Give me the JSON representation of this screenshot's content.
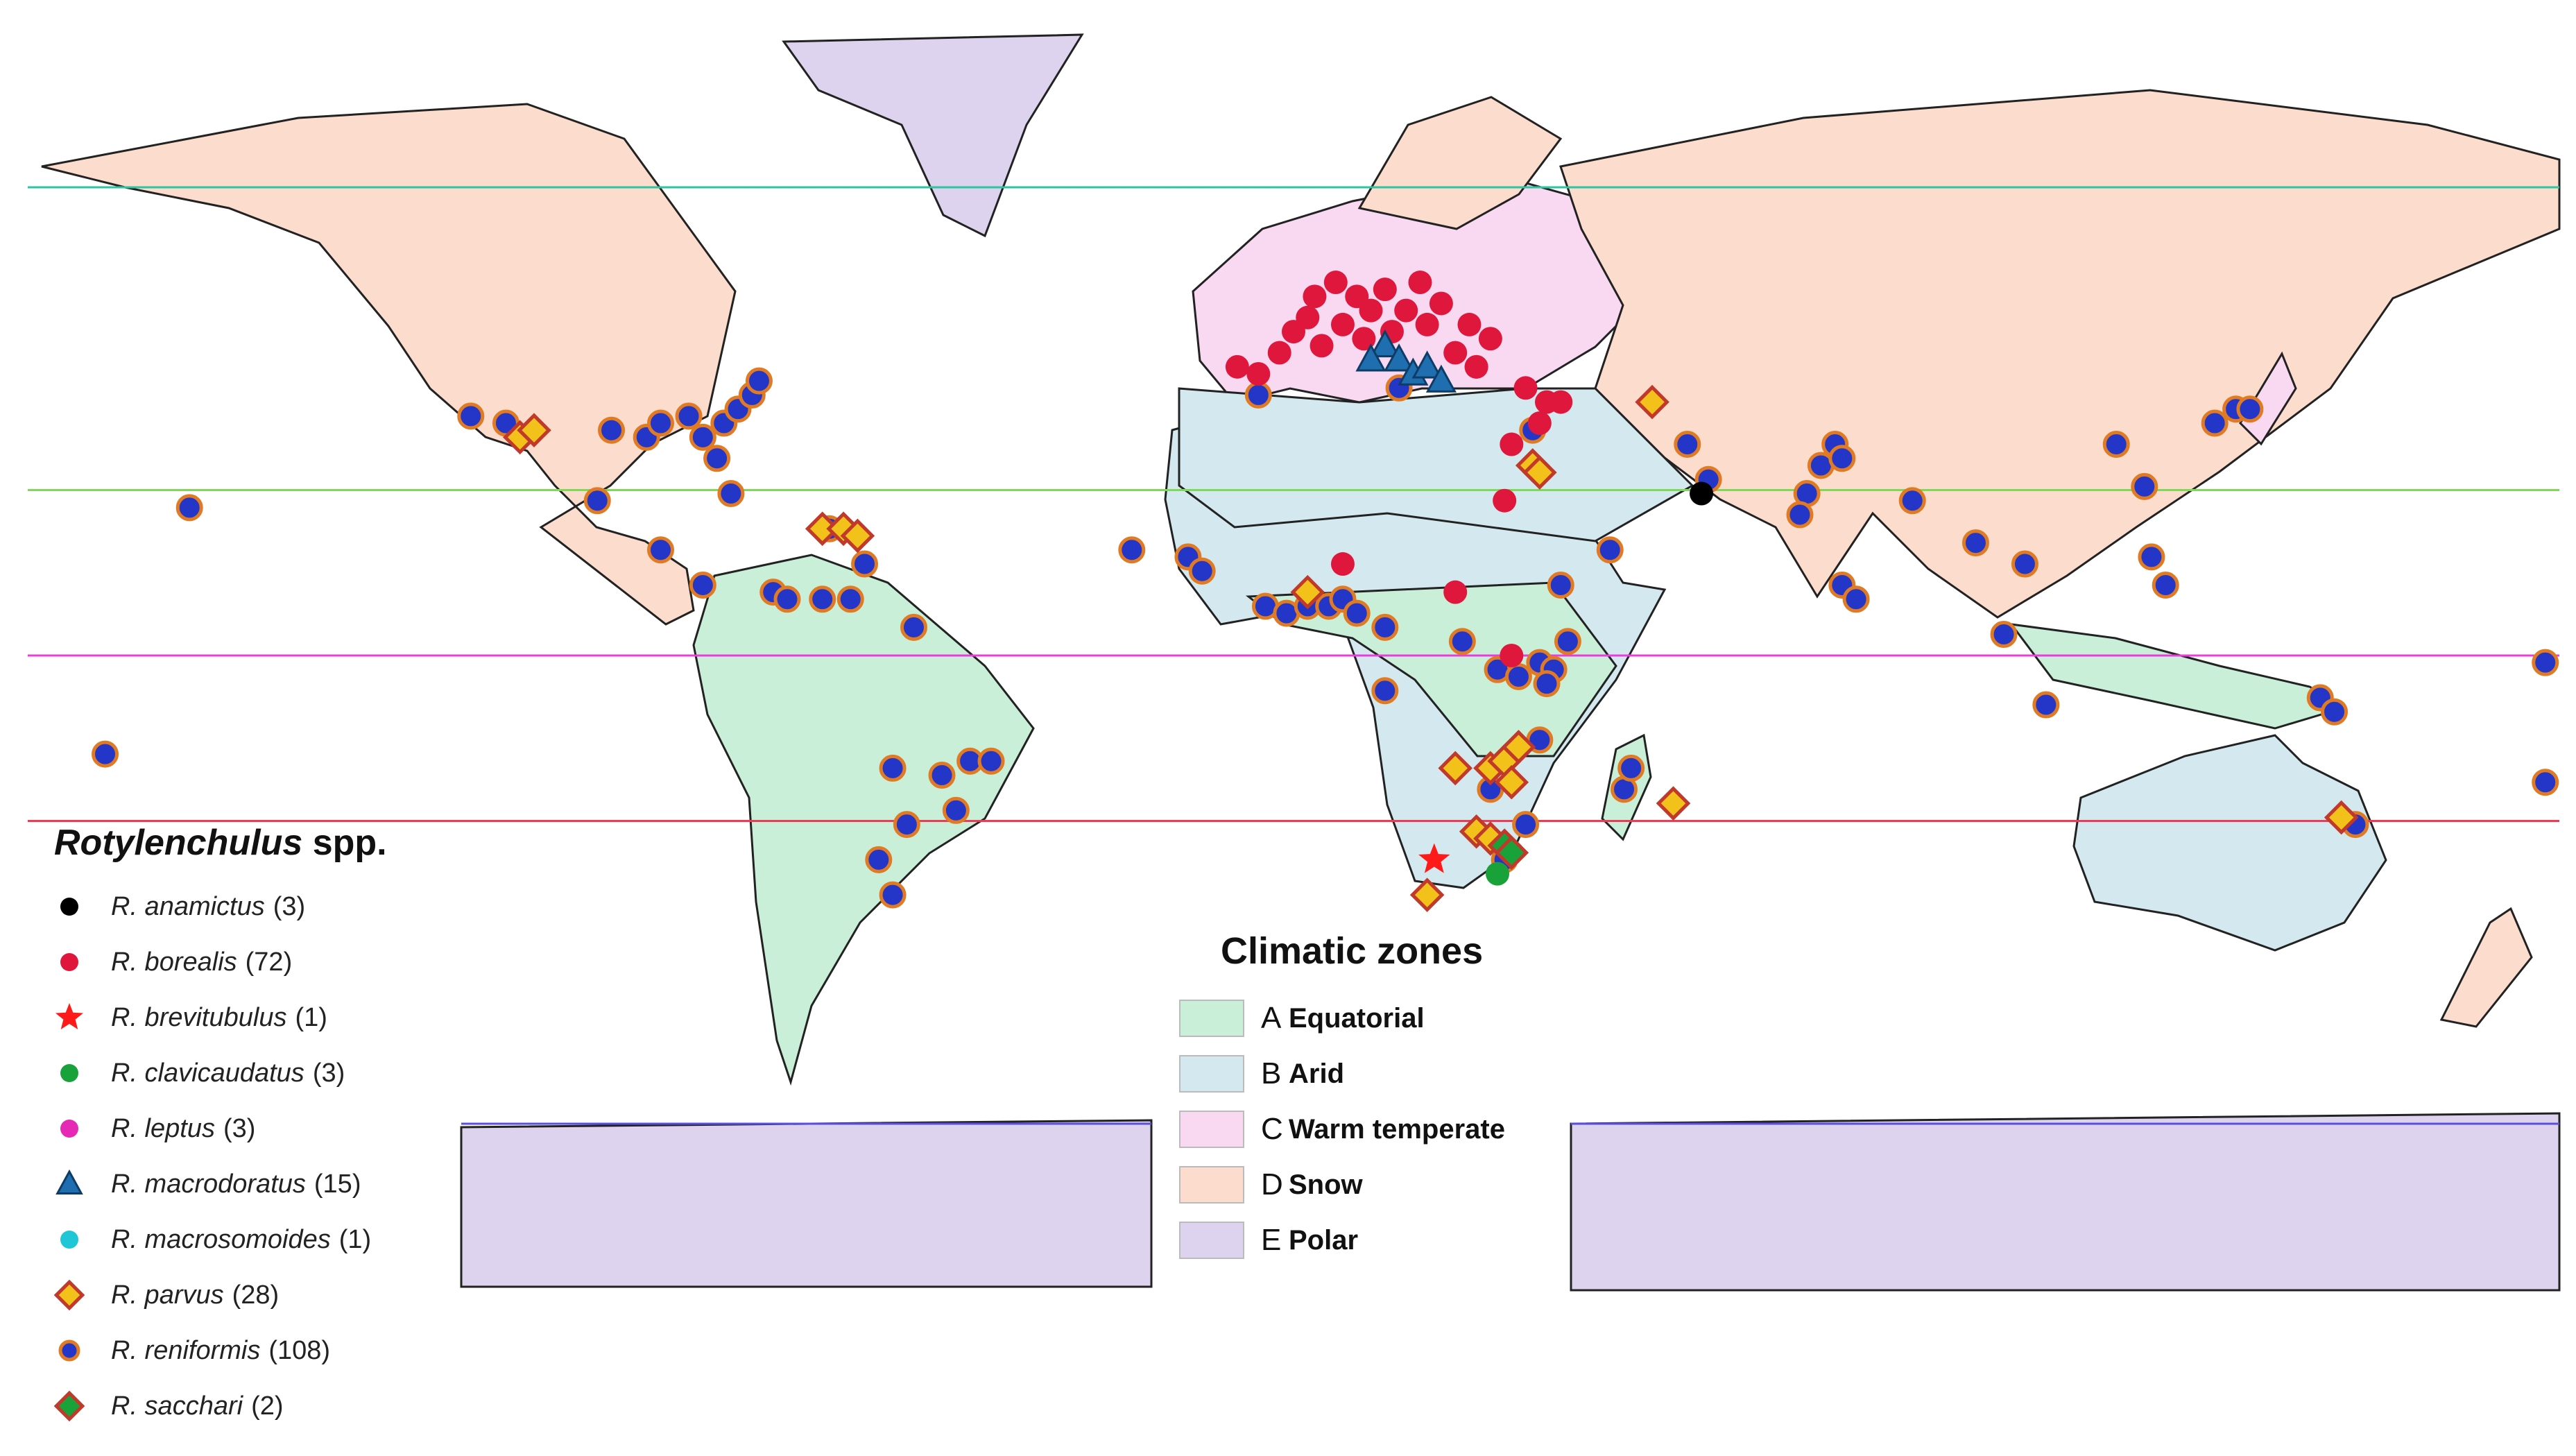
{
  "species_legend": {
    "title_genus": "Rotylenchulus",
    "title_suffix": "spp.",
    "items": [
      {
        "name": "R. anamictus",
        "count": "(3)",
        "symbol": "circle",
        "color": "#000000"
      },
      {
        "name": "R. borealis",
        "count": "(72)",
        "symbol": "circle",
        "color": "#e0173c"
      },
      {
        "name": "R. brevitubulus",
        "count": "(1)",
        "symbol": "star",
        "color": "#ff1a1a"
      },
      {
        "name": "R. clavicaudatus",
        "count": "(3)",
        "symbol": "circle",
        "color": "#1aa23a"
      },
      {
        "name": "R. leptus",
        "count": "(3)",
        "symbol": "circle",
        "color": "#e629b5"
      },
      {
        "name": "R. macrodoratus",
        "count": "(15)",
        "symbol": "triangle",
        "color": "#1f6fb0"
      },
      {
        "name": "R. macrosomoides",
        "count": "(1)",
        "symbol": "circle",
        "color": "#1fc7d6"
      },
      {
        "name": "R. parvus",
        "count": "(28)",
        "symbol": "diamond",
        "color": "#f2c21b"
      },
      {
        "name": "R. reniformis",
        "count": "(108)",
        "symbol": "circle",
        "color": "#2336c8"
      },
      {
        "name": "R. sacchari",
        "count": "(2)",
        "symbol": "diamond",
        "color": "#1aa23a"
      }
    ]
  },
  "zones_legend": {
    "title": "Climatic zones",
    "items": [
      {
        "letter": "A",
        "label": "Equatorial",
        "color": "#c9efd9"
      },
      {
        "letter": "B",
        "label": "Arid",
        "color": "#d4e9ef"
      },
      {
        "letter": "C",
        "label": "Warm temperate",
        "color": "#f9d9f1"
      },
      {
        "letter": "D",
        "label": "Snow",
        "color": "#fbdccd"
      },
      {
        "letter": "E",
        "label": "Polar",
        "color": "#ddd3ee"
      }
    ]
  },
  "latitude_lines": [
    {
      "latitude": 66.5,
      "color": "#2ec4a0"
    },
    {
      "latitude": 23.5,
      "color": "#7ed957"
    },
    {
      "latitude": 0,
      "color": "#ee3be0"
    },
    {
      "latitude": -23.5,
      "color": "#ef3a56"
    },
    {
      "latitude": -66.5,
      "color": "#5a4fd8"
    }
  ],
  "occurrences": [
    {
      "species": "R. reniformis",
      "lon": -117,
      "lat": 34
    },
    {
      "species": "R. reniformis",
      "lon": -112,
      "lat": 33
    },
    {
      "species": "R. reniformis",
      "lon": -97,
      "lat": 32
    },
    {
      "species": "R. reniformis",
      "lon": -92,
      "lat": 31
    },
    {
      "species": "R. reniformis",
      "lon": -90,
      "lat": 33
    },
    {
      "species": "R. reniformis",
      "lon": -86,
      "lat": 34
    },
    {
      "species": "R. reniformis",
      "lon": -84,
      "lat": 31
    },
    {
      "species": "R. reniformis",
      "lon": -81,
      "lat": 33
    },
    {
      "species": "R. reniformis",
      "lon": -79,
      "lat": 35
    },
    {
      "species": "R. reniformis",
      "lon": -77,
      "lat": 37
    },
    {
      "species": "R. reniformis",
      "lon": -76,
      "lat": 39
    },
    {
      "species": "R. reniformis",
      "lon": -82,
      "lat": 28
    },
    {
      "species": "R. reniformis",
      "lon": -99,
      "lat": 22
    },
    {
      "species": "R. reniformis",
      "lon": -157,
      "lat": 21
    },
    {
      "species": "R. reniformis",
      "lon": -80,
      "lat": 23
    },
    {
      "species": "R. reniformis",
      "lon": -90,
      "lat": 15
    },
    {
      "species": "R. reniformis",
      "lon": -84,
      "lat": 10
    },
    {
      "species": "R. reniformis",
      "lon": -66,
      "lat": 18
    },
    {
      "species": "R. reniformis",
      "lon": -61,
      "lat": 13
    },
    {
      "species": "R. reniformis",
      "lon": -74,
      "lat": 9
    },
    {
      "species": "R. reniformis",
      "lon": -72,
      "lat": 8
    },
    {
      "species": "R. reniformis",
      "lon": -67,
      "lat": 8
    },
    {
      "species": "R. reniformis",
      "lon": -63,
      "lat": 8
    },
    {
      "species": "R. reniformis",
      "lon": -54,
      "lat": 4
    },
    {
      "species": "R. reniformis",
      "lon": -169,
      "lat": -14
    },
    {
      "species": "R. reniformis",
      "lon": -57,
      "lat": -16
    },
    {
      "species": "R. reniformis",
      "lon": -50,
      "lat": -17
    },
    {
      "species": "R. reniformis",
      "lon": -46,
      "lat": -15
    },
    {
      "species": "R. reniformis",
      "lon": -43,
      "lat": -15
    },
    {
      "species": "R. reniformis",
      "lon": -48,
      "lat": -22
    },
    {
      "species": "R. reniformis",
      "lon": -55,
      "lat": -24
    },
    {
      "species": "R. reniformis",
      "lon": -59,
      "lat": -29
    },
    {
      "species": "R. reniformis",
      "lon": -57,
      "lat": -34
    },
    {
      "species": "R. reniformis",
      "lon": -5,
      "lat": 37
    },
    {
      "species": "R. reniformis",
      "lon": 15,
      "lat": 38
    },
    {
      "species": "R. reniformis",
      "lon": 34,
      "lat": 32
    },
    {
      "species": "R. reniformis",
      "lon": 56,
      "lat": 30
    },
    {
      "species": "R. reniformis",
      "lon": 59,
      "lat": 25
    },
    {
      "species": "R. reniformis",
      "lon": 45,
      "lat": 15
    },
    {
      "species": "R. reniformis",
      "lon": -23,
      "lat": 15
    },
    {
      "species": "R. reniformis",
      "lon": -15,
      "lat": 14
    },
    {
      "species": "R. reniformis",
      "lon": -13,
      "lat": 12
    },
    {
      "species": "R. reniformis",
      "lon": -4,
      "lat": 7
    },
    {
      "species": "R. reniformis",
      "lon": -1,
      "lat": 6
    },
    {
      "species": "R. reniformis",
      "lon": 2,
      "lat": 7
    },
    {
      "species": "R. reniformis",
      "lon": 5,
      "lat": 7
    },
    {
      "species": "R. reniformis",
      "lon": 7,
      "lat": 8
    },
    {
      "species": "R. reniformis",
      "lon": 9,
      "lat": 6
    },
    {
      "species": "R. reniformis",
      "lon": 13,
      "lat": 4
    },
    {
      "species": "R. reniformis",
      "lon": 24,
      "lat": 2
    },
    {
      "species": "R. reniformis",
      "lon": 13,
      "lat": -5
    },
    {
      "species": "R. reniformis",
      "lon": 29,
      "lat": -2
    },
    {
      "species": "R. reniformis",
      "lon": 32,
      "lat": -3
    },
    {
      "species": "R. reniformis",
      "lon": 35,
      "lat": -1
    },
    {
      "species": "R. reniformis",
      "lon": 37,
      "lat": -2
    },
    {
      "species": "R. reniformis",
      "lon": 36,
      "lat": -4
    },
    {
      "species": "R. reniformis",
      "lon": 39,
      "lat": 2
    },
    {
      "species": "R. reniformis",
      "lon": 38,
      "lat": 10
    },
    {
      "species": "R. reniformis",
      "lon": 35,
      "lat": -12
    },
    {
      "species": "R. reniformis",
      "lon": 33,
      "lat": -24
    },
    {
      "species": "R. reniformis",
      "lon": 47,
      "lat": -19
    },
    {
      "species": "R. reniformis",
      "lon": 48,
      "lat": -16
    },
    {
      "species": "R. reniformis",
      "lon": 28,
      "lat": -19
    },
    {
      "species": "R. reniformis",
      "lon": 30,
      "lat": -29
    },
    {
      "species": "R. reniformis",
      "lon": 73,
      "lat": 23
    },
    {
      "species": "R. reniformis",
      "lon": 75,
      "lat": 27
    },
    {
      "species": "R. reniformis",
      "lon": 77,
      "lat": 30
    },
    {
      "species": "R. reniformis",
      "lon": 78,
      "lat": 28
    },
    {
      "species": "R. reniformis",
      "lon": 72,
      "lat": 20
    },
    {
      "species": "R. reniformis",
      "lon": 88,
      "lat": 22
    },
    {
      "species": "R. reniformis",
      "lon": 78,
      "lat": 10
    },
    {
      "species": "R. reniformis",
      "lon": 80,
      "lat": 8
    },
    {
      "species": "R. reniformis",
      "lon": 97,
      "lat": 16
    },
    {
      "species": "R. reniformis",
      "lon": 104,
      "lat": 13
    },
    {
      "species": "R. reniformis",
      "lon": 101,
      "lat": 3
    },
    {
      "species": "R. reniformis",
      "lon": 117,
      "lat": 30
    },
    {
      "species": "R. reniformis",
      "lon": 121,
      "lat": 24
    },
    {
      "species": "R. reniformis",
      "lon": 122,
      "lat": 14
    },
    {
      "species": "R. reniformis",
      "lon": 124,
      "lat": 10
    },
    {
      "species": "R. reniformis",
      "lon": 107,
      "lat": -7
    },
    {
      "species": "R. reniformis",
      "lon": 131,
      "lat": 33
    },
    {
      "species": "R. reniformis",
      "lon": 134,
      "lat": 35
    },
    {
      "species": "R. reniformis",
      "lon": 136,
      "lat": 35
    },
    {
      "species": "R. reniformis",
      "lon": 146,
      "lat": -6
    },
    {
      "species": "R. reniformis",
      "lon": 148,
      "lat": -8
    },
    {
      "species": "R. reniformis",
      "lon": 178,
      "lat": -1
    },
    {
      "species": "R. reniformis",
      "lon": 178,
      "lat": -18
    },
    {
      "species": "R. reniformis",
      "lon": 151,
      "lat": -24
    },
    {
      "species": "R. borealis",
      "lon": -8,
      "lat": 41
    },
    {
      "species": "R. borealis",
      "lon": -5,
      "lat": 40
    },
    {
      "species": "R. borealis",
      "lon": -2,
      "lat": 43
    },
    {
      "species": "R. borealis",
      "lon": 0,
      "lat": 46
    },
    {
      "species": "R. borealis",
      "lon": 2,
      "lat": 48
    },
    {
      "species": "R. borealis",
      "lon": 3,
      "lat": 51
    },
    {
      "species": "R. borealis",
      "lon": 4,
      "lat": 44
    },
    {
      "species": "R. borealis",
      "lon": 6,
      "lat": 53
    },
    {
      "species": "R. borealis",
      "lon": 7,
      "lat": 47
    },
    {
      "species": "R. borealis",
      "lon": 9,
      "lat": 51
    },
    {
      "species": "R. borealis",
      "lon": 10,
      "lat": 45
    },
    {
      "species": "R. borealis",
      "lon": 11,
      "lat": 49
    },
    {
      "species": "R. borealis",
      "lon": 13,
      "lat": 52
    },
    {
      "species": "R. borealis",
      "lon": 14,
      "lat": 46
    },
    {
      "species": "R. borealis",
      "lon": 16,
      "lat": 49
    },
    {
      "species": "R. borealis",
      "lon": 18,
      "lat": 53
    },
    {
      "species": "R. borealis",
      "lon": 19,
      "lat": 47
    },
    {
      "species": "R. borealis",
      "lon": 21,
      "lat": 50
    },
    {
      "species": "R. borealis",
      "lon": 23,
      "lat": 43
    },
    {
      "species": "R. borealis",
      "lon": 25,
      "lat": 47
    },
    {
      "species": "R. borealis",
      "lon": 26,
      "lat": 41
    },
    {
      "species": "R. borealis",
      "lon": 28,
      "lat": 45
    },
    {
      "species": "R. borealis",
      "lon": 33,
      "lat": 38
    },
    {
      "species": "R. borealis",
      "lon": 36,
      "lat": 36
    },
    {
      "species": "R. borealis",
      "lon": 35,
      "lat": 33
    },
    {
      "species": "R. borealis",
      "lon": 38,
      "lat": 36
    },
    {
      "species": "R. borealis",
      "lon": 31,
      "lat": 30
    },
    {
      "species": "R. borealis",
      "lon": 30,
      "lat": 22
    },
    {
      "species": "R. borealis",
      "lon": 7,
      "lat": 13
    },
    {
      "species": "R. borealis",
      "lon": 23,
      "lat": 9
    },
    {
      "species": "R. borealis",
      "lon": 31,
      "lat": 0
    },
    {
      "species": "R. borealis",
      "lon": 26,
      "lat": 41
    },
    {
      "species": "R. macrodoratus",
      "lon": 13,
      "lat": 44
    },
    {
      "species": "R. macrodoratus",
      "lon": 15,
      "lat": 42
    },
    {
      "species": "R. macrodoratus",
      "lon": 17,
      "lat": 40
    },
    {
      "species": "R. macrodoratus",
      "lon": 19,
      "lat": 41
    },
    {
      "species": "R. macrodoratus",
      "lon": 21,
      "lat": 39
    },
    {
      "species": "R. macrodoratus",
      "lon": 11,
      "lat": 42
    },
    {
      "species": "R. parvus",
      "lon": -110,
      "lat": 31
    },
    {
      "species": "R. parvus",
      "lon": -108,
      "lat": 32
    },
    {
      "species": "R. parvus",
      "lon": -67,
      "lat": 18
    },
    {
      "species": "R. parvus",
      "lon": -64,
      "lat": 18
    },
    {
      "species": "R. parvus",
      "lon": -62,
      "lat": 17
    },
    {
      "species": "R. parvus",
      "lon": 2,
      "lat": 9
    },
    {
      "species": "R. parvus",
      "lon": 34,
      "lat": 27
    },
    {
      "species": "R. parvus",
      "lon": 35,
      "lat": 26
    },
    {
      "species": "R. parvus",
      "lon": 51,
      "lat": 36
    },
    {
      "species": "R. parvus",
      "lon": 54,
      "lat": -21
    },
    {
      "species": "R. parvus",
      "lon": 23,
      "lat": -16
    },
    {
      "species": "R. parvus",
      "lon": 28,
      "lat": -16
    },
    {
      "species": "R. parvus",
      "lon": 30,
      "lat": -15
    },
    {
      "species": "R. parvus",
      "lon": 32,
      "lat": -13
    },
    {
      "species": "R. parvus",
      "lon": 31,
      "lat": -18
    },
    {
      "species": "R. parvus",
      "lon": 26,
      "lat": -25
    },
    {
      "species": "R. parvus",
      "lon": 28,
      "lat": -26
    },
    {
      "species": "R. parvus",
      "lon": 19,
      "lat": -34
    },
    {
      "species": "R. parvus",
      "lon": 149,
      "lat": -23
    },
    {
      "species": "R. sacchari",
      "lon": 30,
      "lat": -27
    },
    {
      "species": "R. sacchari",
      "lon": 31,
      "lat": -28
    },
    {
      "species": "R. clavicaudatus",
      "lon": 29,
      "lat": -31
    },
    {
      "species": "R. anamictus",
      "lon": 58,
      "lat": 23
    },
    {
      "species": "R. brevitubulus",
      "lon": 20,
      "lat": -29
    }
  ]
}
